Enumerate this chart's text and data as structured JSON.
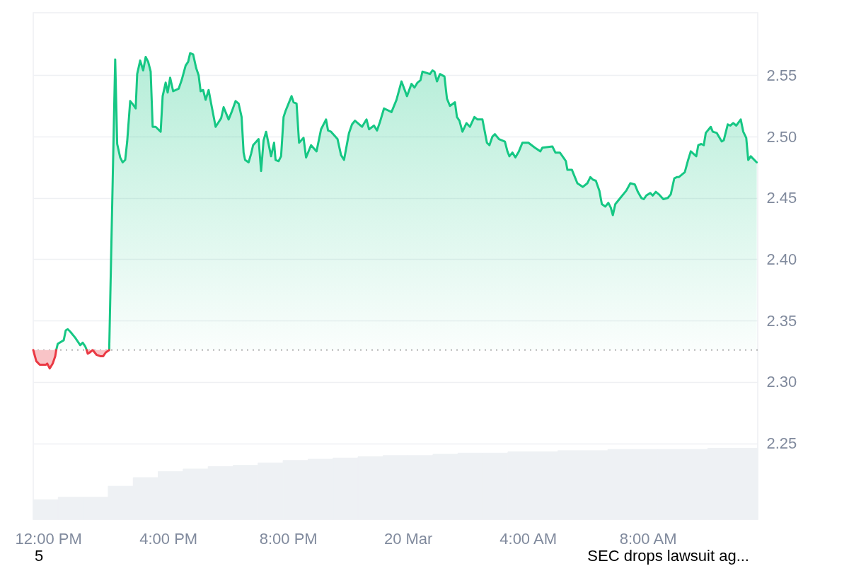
{
  "chart_data": {
    "type": "area",
    "xlim": [
      "--03-19T11:30",
      "--03-20T11:40"
    ],
    "xticks": [
      {
        "value": "--03-19T12:00",
        "label": "12:00 PM"
      },
      {
        "value": "--03-19T16:00",
        "label": "4:00 PM"
      },
      {
        "value": "--03-19T20:00",
        "label": "8:00 PM"
      },
      {
        "value": "--03-20",
        "label": "20 Mar"
      },
      {
        "value": "--03-20T04:00",
        "label": "4:00 AM"
      },
      {
        "value": "--03-20T08:00",
        "label": "8:00 AM"
      }
    ],
    "ylim": [
      2.188,
      2.601
    ],
    "yticks": [
      2.25,
      {
        "value": 2.3,
        "label": "2.30"
      },
      2.35,
      {
        "value": 2.4,
        "label": "2.40"
      },
      2.45,
      {
        "value": 2.5,
        "label": "2.50"
      },
      2.55
    ],
    "grid": "y",
    "series": [
      {
        "type": "bar",
        "color": "#eef1f4",
        "x": [
          "--03-19T11:55",
          "--03-19T12:45",
          "--03-19T13:35",
          "--03-19T14:25",
          "--03-19T15:15",
          "--03-19T16:05",
          "--03-19T16:55",
          "--03-19T17:45",
          "--03-19T18:35",
          "--03-19T19:25",
          "--03-19T20:15",
          "--03-19T21:05",
          "--03-19T21:55",
          "--03-19T22:45",
          "--03-19T23:35",
          "--03-20T00:25",
          "--03-20T01:15",
          "--03-20T02:05",
          "--03-20T02:55",
          "--03-20T03:45",
          "--03-20T04:35",
          "--03-20T05:25",
          "--03-20T06:15",
          "--03-20T07:05",
          "--03-20T07:55",
          "--03-20T08:45",
          "--03-20T09:35",
          "--03-20T10:25",
          "--03-20T11:15"
        ],
        "values": [
          2.204,
          2.206,
          2.206,
          2.215,
          2.222,
          2.227,
          2.229,
          2.231,
          2.232,
          2.234,
          2.236,
          2.237,
          2.238,
          2.239,
          2.24,
          2.24,
          2.241,
          2.242,
          2.242,
          2.243,
          2.243,
          2.244,
          2.244,
          2.245,
          2.245,
          2.245,
          2.245,
          2.246,
          2.246
        ]
      },
      {
        "color": "#16c784",
        "x": [
          "--03-19T12:16",
          "--03-19T12:19",
          "--03-19T12:31",
          "--03-19T12:35",
          "--03-19T12:39",
          "--03-19T12:44",
          "--03-19T12:54",
          "--03-19T13:04",
          "--03-19T13:09",
          "--03-19T13:14",
          "--03-19T13:17",
          "--03-19T13:36",
          "--03-19T14:02",
          "--03-19T14:14",
          "--03-19T14:18",
          "--03-19T14:24",
          "--03-19T14:29",
          "--03-19T14:34",
          "--03-19T14:38",
          "--03-19T14:44",
          "--03-19T14:50",
          "--03-19T14:55",
          "--03-19T14:58",
          "--03-19T15:04",
          "--03-19T15:10",
          "--03-19T15:15",
          "--03-19T15:20",
          "--03-19T15:25",
          "--03-19T15:29",
          "--03-19T15:35",
          "--03-19T15:45",
          "--03-19T15:49",
          "--03-19T15:55",
          "--03-19T15:59",
          "--03-19T16:04",
          "--03-19T16:10",
          "--03-19T16:21",
          "--03-19T16:27",
          "--03-19T16:35",
          "--03-19T16:40",
          "--03-19T16:44",
          "--03-19T16:50",
          "--03-19T16:56",
          "--03-19T17:01",
          "--03-19T17:05",
          "--03-19T17:10",
          "--03-19T17:15",
          "--03-19T17:21",
          "--03-19T17:26",
          "--03-19T17:35",
          "--03-19T17:46",
          "--03-19T17:51",
          "--03-19T18:01",
          "--03-19T18:07",
          "--03-19T18:15",
          "--03-19T18:21",
          "--03-19T18:27",
          "--03-19T18:31",
          "--03-19T18:34",
          "--03-19T18:41",
          "--03-19T18:46",
          "--03-19T18:50",
          "--03-19T19:01",
          "--03-19T19:06",
          "--03-19T19:11",
          "--03-19T19:16",
          "--03-19T19:26",
          "--03-19T19:32",
          "--03-19T19:35",
          "--03-19T19:41",
          "--03-19T19:46",
          "--03-19T19:51",
          "--03-19T19:55",
          "--03-19T20:07",
          "--03-19T20:11",
          "--03-19T20:17",
          "--03-19T20:22",
          "--03-19T20:31",
          "--03-19T20:36",
          "--03-19T20:46",
          "--03-19T20:57",
          "--03-19T21:06",
          "--03-19T21:16",
          "--03-19T21:20",
          "--03-19T21:26",
          "--03-19T21:39",
          "--03-19T21:46",
          "--03-19T21:52",
          "--03-19T22:02",
          "--03-19T22:08",
          "--03-19T22:14",
          "--03-19T22:28",
          "--03-19T22:37",
          "--03-19T22:42",
          "--03-19T22:52",
          "--03-19T22:58",
          "--03-19T23:04",
          "--03-19T23:12",
          "--03-19T23:27",
          "--03-19T23:37",
          "--03-19T23:47",
          "--03-19T23:58",
          "--03-20T00:07",
          "--03-20T00:13",
          "--03-20T00:19",
          "--03-20T00:25",
          "--03-20T00:29",
          "--03-20T00:44",
          "--03-20T00:49",
          "--03-20T00:53",
          "--03-20T00:58",
          "--03-20T01:04",
          "--03-20T01:13",
          "--03-20T01:18",
          "--03-20T01:24",
          "--03-20T01:34",
          "--03-20T01:38",
          "--03-20T01:43",
          "--03-20T01:49",
          "--03-20T01:57",
          "--03-20T02:04",
          "--03-20T02:13",
          "--03-20T02:19",
          "--03-20T02:29",
          "--03-20T02:38",
          "--03-20T02:43",
          "--03-20T02:49",
          "--03-20T02:54",
          "--03-20T03:02",
          "--03-20T03:14",
          "--03-20T03:19",
          "--03-20T03:23",
          "--03-20T03:29",
          "--03-20T03:35",
          "--03-20T03:42",
          "--03-20T03:49",
          "--03-20T04:01",
          "--03-20T04:14",
          "--03-20T04:25",
          "--03-20T04:29",
          "--03-20T04:49",
          "--03-20T04:55",
          "--03-20T05:04",
          "--03-20T05:11",
          "--03-20T05:16",
          "--03-20T05:19",
          "--03-20T05:28",
          "--03-20T05:39",
          "--03-20T05:50",
          "--03-20T05:59",
          "--03-20T06:05",
          "--03-20T06:10",
          "--03-20T06:16",
          "--03-20T06:23",
          "--03-20T06:28",
          "--03-20T06:35",
          "--03-20T06:41",
          "--03-20T06:46",
          "--03-20T06:50",
          "--03-20T06:55",
          "--03-20T07:05",
          "--03-20T07:17",
          "--03-20T07:25",
          "--03-20T07:34",
          "--03-20T07:40",
          "--03-20T07:47",
          "--03-20T07:52",
          "--03-20T07:57",
          "--03-20T08:05",
          "--03-20T08:10",
          "--03-20T08:16",
          "--03-20T08:22",
          "--03-20T08:31",
          "--03-20T08:40",
          "--03-20T08:46",
          "--03-20T08:53",
          "--03-20T08:58",
          "--03-20T09:02",
          "--03-20T09:14",
          "--03-20T09:20",
          "--03-20T09:26",
          "--03-20T09:37",
          "--03-20T09:41",
          "--03-20T09:47",
          "--03-20T09:52",
          "--03-20T09:56",
          "--03-20T10:06",
          "--03-20T10:10",
          "--03-20T10:18",
          "--03-20T10:28",
          "--03-20T10:32",
          "--03-20T10:40",
          "--03-20T10:45",
          "--03-20T10:51",
          "--03-20T10:57",
          "--03-20T11:06",
          "--03-20T11:11",
          "--03-20T11:17",
          "--03-20T11:21",
          "--03-20T11:26",
          "--03-20T11:38"
        ],
        "values": [
          2.326,
          2.331,
          2.334,
          2.342,
          2.343,
          2.341,
          2.336,
          2.33,
          2.332,
          2.329,
          2.326,
          null,
          2.326,
          2.563,
          2.494,
          2.483,
          2.479,
          2.481,
          2.496,
          2.529,
          2.526,
          2.523,
          2.551,
          2.562,
          2.554,
          2.565,
          2.561,
          2.553,
          2.508,
          2.508,
          2.504,
          2.533,
          2.544,
          2.536,
          2.548,
          2.537,
          2.539,
          2.546,
          2.558,
          2.561,
          2.568,
          2.567,
          2.556,
          2.55,
          2.537,
          2.538,
          2.53,
          2.538,
          2.527,
          2.508,
          2.515,
          2.524,
          2.514,
          2.52,
          2.529,
          2.527,
          2.516,
          2.487,
          2.481,
          2.479,
          2.486,
          2.493,
          2.498,
          2.472,
          2.497,
          2.504,
          2.484,
          2.495,
          2.481,
          2.48,
          2.484,
          2.516,
          2.521,
          2.533,
          2.528,
          2.527,
          2.495,
          2.499,
          2.483,
          2.493,
          2.488,
          2.506,
          2.514,
          2.505,
          2.504,
          2.498,
          2.485,
          2.481,
          2.503,
          2.51,
          2.513,
          2.508,
          2.514,
          2.506,
          2.509,
          2.505,
          2.512,
          2.523,
          2.52,
          2.53,
          2.545,
          2.533,
          2.543,
          2.54,
          2.544,
          2.546,
          2.553,
          2.551,
          2.554,
          2.553,
          2.545,
          2.551,
          2.549,
          2.531,
          2.525,
          2.528,
          2.516,
          2.513,
          2.504,
          2.511,
          2.508,
          2.516,
          2.514,
          2.514,
          2.495,
          2.493,
          2.5,
          2.502,
          2.498,
          2.496,
          2.488,
          2.484,
          2.487,
          2.483,
          2.488,
          2.495,
          2.495,
          2.491,
          2.488,
          2.491,
          2.492,
          2.487,
          2.487,
          2.483,
          2.48,
          2.473,
          2.473,
          2.462,
          2.459,
          2.462,
          2.467,
          2.465,
          2.464,
          2.456,
          2.445,
          2.443,
          2.446,
          2.442,
          2.436,
          2.445,
          2.45,
          2.456,
          2.462,
          2.461,
          2.455,
          2.45,
          2.449,
          2.452,
          2.454,
          2.452,
          2.455,
          2.453,
          2.449,
          2.45,
          2.453,
          2.466,
          2.467,
          2.467,
          2.471,
          2.48,
          2.488,
          2.484,
          2.493,
          2.494,
          2.493,
          2.503,
          2.508,
          2.504,
          2.503,
          2.496,
          2.497,
          2.51,
          2.509,
          2.511,
          2.509,
          2.514,
          2.504,
          2.499,
          2.481,
          2.484,
          2.479
        ]
      },
      {
        "type": "line",
        "color": "#ea3943",
        "x": [
          "--03-19T11:30",
          "--03-19T11:36",
          "--03-19T11:43",
          "--03-19T11:55",
          "--03-19T11:58",
          "--03-19T12:03",
          "--03-19T12:09",
          "--03-19T12:14",
          "--03-19T12:16",
          "--03-19T12:48",
          "--03-19T13:17",
          "--03-19T13:19",
          "--03-19T13:23",
          "--03-19T13:29",
          "--03-19T13:37",
          "--03-19T13:44",
          "--03-19T13:50",
          "--03-19T13:55",
          "--03-19T14:02"
        ],
        "values": [
          2.326,
          2.317,
          2.314,
          2.314,
          2.315,
          2.311,
          2.315,
          2.321,
          2.326,
          null,
          2.326,
          2.323,
          2.324,
          2.326,
          2.322,
          2.321,
          2.321,
          2.324,
          2.326
        ],
        "lower": [
          2.326,
          2.317,
          2.314,
          2.314,
          2.315,
          2.311,
          2.315,
          2.321,
          2.326,
          null,
          2.326,
          2.323,
          2.324,
          2.326,
          2.322,
          2.321,
          2.321,
          2.324,
          2.326
        ],
        "upper": [
          2.326,
          2.326,
          2.326,
          2.326,
          2.326,
          2.326,
          2.326,
          2.326,
          2.326,
          null,
          2.326,
          2.326,
          2.326,
          2.326,
          2.326,
          2.326,
          2.326,
          2.326,
          2.326
        ]
      }
    ],
    "ref_lines": [
      {
        "axis": "y",
        "value": 2.326,
        "line_style": "dotted",
        "color": "#9a9a9a"
      }
    ],
    "annotations": [
      "5",
      "SEC drops lawsuit ag..."
    ]
  }
}
